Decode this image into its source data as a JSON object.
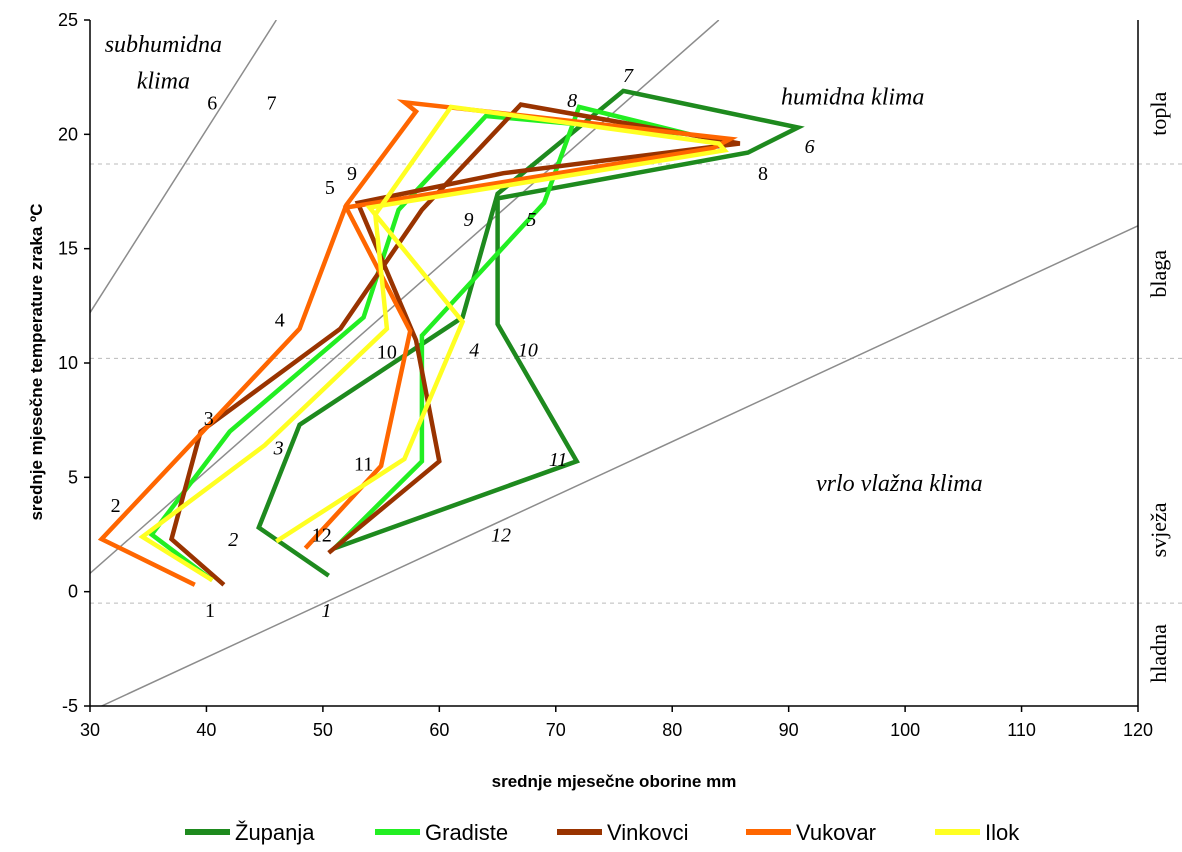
{
  "chart_data": {
    "type": "line",
    "title": "",
    "xlabel": "srednje mjesečne oborine mm",
    "ylabel": "srednje mjesečne temperature zraka ºC",
    "xlim": [
      30,
      120
    ],
    "ylim": [
      -5,
      25
    ],
    "xticks": [
      "30",
      "40",
      "50",
      "60",
      "70",
      "80",
      "90",
      "100",
      "110",
      "120"
    ],
    "yticks": [
      "-5",
      "0",
      "5",
      "10",
      "15",
      "20",
      "25"
    ],
    "legend_position": "bottom",
    "series": [
      {
        "name": "Županja",
        "color": "#1e8a1e",
        "points": [
          [
            50.5,
            0.7
          ],
          [
            44.5,
            2.8
          ],
          [
            48.0,
            7.3
          ],
          [
            62.0,
            12.0
          ],
          [
            65.0,
            17.4
          ],
          [
            75.8,
            21.9
          ],
          [
            90.8,
            20.3
          ],
          [
            86.5,
            19.2
          ],
          [
            65.0,
            17.2
          ],
          [
            65.0,
            11.7
          ],
          [
            71.8,
            5.7
          ],
          [
            51.0,
            1.9
          ]
        ]
      },
      {
        "name": "Gradiste",
        "color": "#22ee22",
        "points": [
          [
            40.5,
            0.5
          ],
          [
            35.3,
            2.5
          ],
          [
            42.0,
            7.0
          ],
          [
            53.5,
            12.0
          ],
          [
            56.5,
            16.7
          ],
          [
            64.0,
            20.8
          ],
          [
            81.5,
            20.0
          ],
          [
            72.0,
            21.2
          ],
          [
            69.0,
            17.0
          ],
          [
            58.5,
            11.2
          ],
          [
            58.5,
            5.7
          ],
          [
            51.0,
            1.9
          ]
        ]
      },
      {
        "name": "Vinkovci",
        "color": "#993300",
        "points": [
          [
            41.5,
            0.3
          ],
          [
            37.0,
            2.3
          ],
          [
            39.5,
            7.0
          ],
          [
            51.5,
            11.5
          ],
          [
            58.5,
            16.7
          ],
          [
            67.0,
            21.3
          ],
          [
            85.8,
            19.6
          ],
          [
            65.5,
            18.3
          ],
          [
            53.0,
            17.0
          ],
          [
            58.0,
            11.0
          ],
          [
            60.0,
            5.7
          ],
          [
            50.5,
            1.7
          ]
        ]
      },
      {
        "name": "Vukovar",
        "color": "#ff6600",
        "points": [
          [
            39.0,
            0.3
          ],
          [
            31.0,
            2.3
          ],
          [
            48.0,
            11.5
          ],
          [
            52.0,
            16.9
          ],
          [
            58.0,
            21.0
          ],
          [
            57.0,
            21.4
          ],
          [
            85.0,
            19.8
          ],
          [
            83.5,
            19.4
          ],
          [
            52.0,
            16.8
          ],
          [
            57.5,
            11.4
          ],
          [
            55.0,
            5.5
          ],
          [
            48.5,
            1.9
          ]
        ]
      },
      {
        "name": "Ilok",
        "color": "#ffff22",
        "points": [
          [
            40.5,
            0.5
          ],
          [
            34.5,
            2.4
          ],
          [
            45.0,
            6.4
          ],
          [
            55.5,
            11.5
          ],
          [
            54.5,
            16.5
          ],
          [
            61.0,
            21.2
          ],
          [
            84.0,
            19.6
          ],
          [
            84.5,
            19.3
          ],
          [
            54.0,
            16.8
          ],
          [
            62.0,
            11.8
          ],
          [
            57.0,
            5.8
          ],
          [
            46.0,
            2.2
          ]
        ]
      }
    ],
    "boundary_lines": [
      [
        [
          30.0,
          12.2
        ],
        [
          46.0,
          25.0
        ]
      ],
      [
        [
          30.0,
          0.8
        ],
        [
          84.0,
          25.0
        ]
      ],
      [
        [
          31.0,
          -5.0
        ],
        [
          120.0,
          16.0
        ]
      ]
    ],
    "zone_lines_y": [
      -0.5,
      10.2,
      18.7
    ],
    "region_labels": [
      {
        "text": "subhumidna",
        "x": 36.3,
        "y": 23.6
      },
      {
        "text": "klima",
        "x": 36.3,
        "y": 22.0
      },
      {
        "text": "humidna klima",
        "x": 95.5,
        "y": 21.3
      },
      {
        "text": "vrlo vlažna klima",
        "x": 99.5,
        "y": 4.4
      }
    ],
    "zone_labels": [
      {
        "text": "topla",
        "y": 20.9
      },
      {
        "text": "blaga",
        "y": 13.9
      },
      {
        "text": "svježa",
        "y": 2.7
      },
      {
        "text": "hladna",
        "y": -2.7
      }
    ],
    "month_labels": [
      {
        "text": "7",
        "x": 76.2,
        "y": 22.6,
        "italic": true
      },
      {
        "text": "8",
        "x": 71.4,
        "y": 21.5,
        "italic": true
      },
      {
        "text": "6",
        "x": 91.8,
        "y": 19.5,
        "italic": true
      },
      {
        "text": "5",
        "x": 67.9,
        "y": 16.3,
        "italic": true
      },
      {
        "text": "9",
        "x": 62.5,
        "y": 16.3,
        "italic": true
      },
      {
        "text": "10",
        "x": 67.6,
        "y": 10.6,
        "italic": true
      },
      {
        "text": "4",
        "x": 63.0,
        "y": 10.6,
        "italic": true
      },
      {
        "text": "3",
        "x": 46.2,
        "y": 6.3,
        "italic": true
      },
      {
        "text": "11",
        "x": 70.2,
        "y": 5.8,
        "italic": true
      },
      {
        "text": "2",
        "x": 42.3,
        "y": 2.3,
        "italic": true
      },
      {
        "text": "12",
        "x": 65.3,
        "y": 2.5,
        "italic": true
      },
      {
        "text": "1",
        "x": 50.3,
        "y": -0.8,
        "italic": true
      },
      {
        "text": "6",
        "x": 40.5,
        "y": 21.4,
        "italic": false
      },
      {
        "text": "7",
        "x": 45.6,
        "y": 21.4,
        "italic": false
      },
      {
        "text": "9",
        "x": 52.5,
        "y": 18.3,
        "italic": false
      },
      {
        "text": "8",
        "x": 87.8,
        "y": 18.3,
        "italic": false
      },
      {
        "text": "5",
        "x": 50.6,
        "y": 17.7,
        "italic": false
      },
      {
        "text": "4",
        "x": 46.3,
        "y": 11.9,
        "italic": false
      },
      {
        "text": "10",
        "x": 55.5,
        "y": 10.5,
        "italic": false
      },
      {
        "text": "3",
        "x": 40.2,
        "y": 7.6,
        "italic": false
      },
      {
        "text": "11",
        "x": 53.5,
        "y": 5.6,
        "italic": false
      },
      {
        "text": "2",
        "x": 32.2,
        "y": 3.8,
        "italic": false
      },
      {
        "text": "12",
        "x": 49.9,
        "y": 2.5,
        "italic": false
      },
      {
        "text": "1",
        "x": 40.3,
        "y": -0.8,
        "italic": false
      }
    ]
  }
}
